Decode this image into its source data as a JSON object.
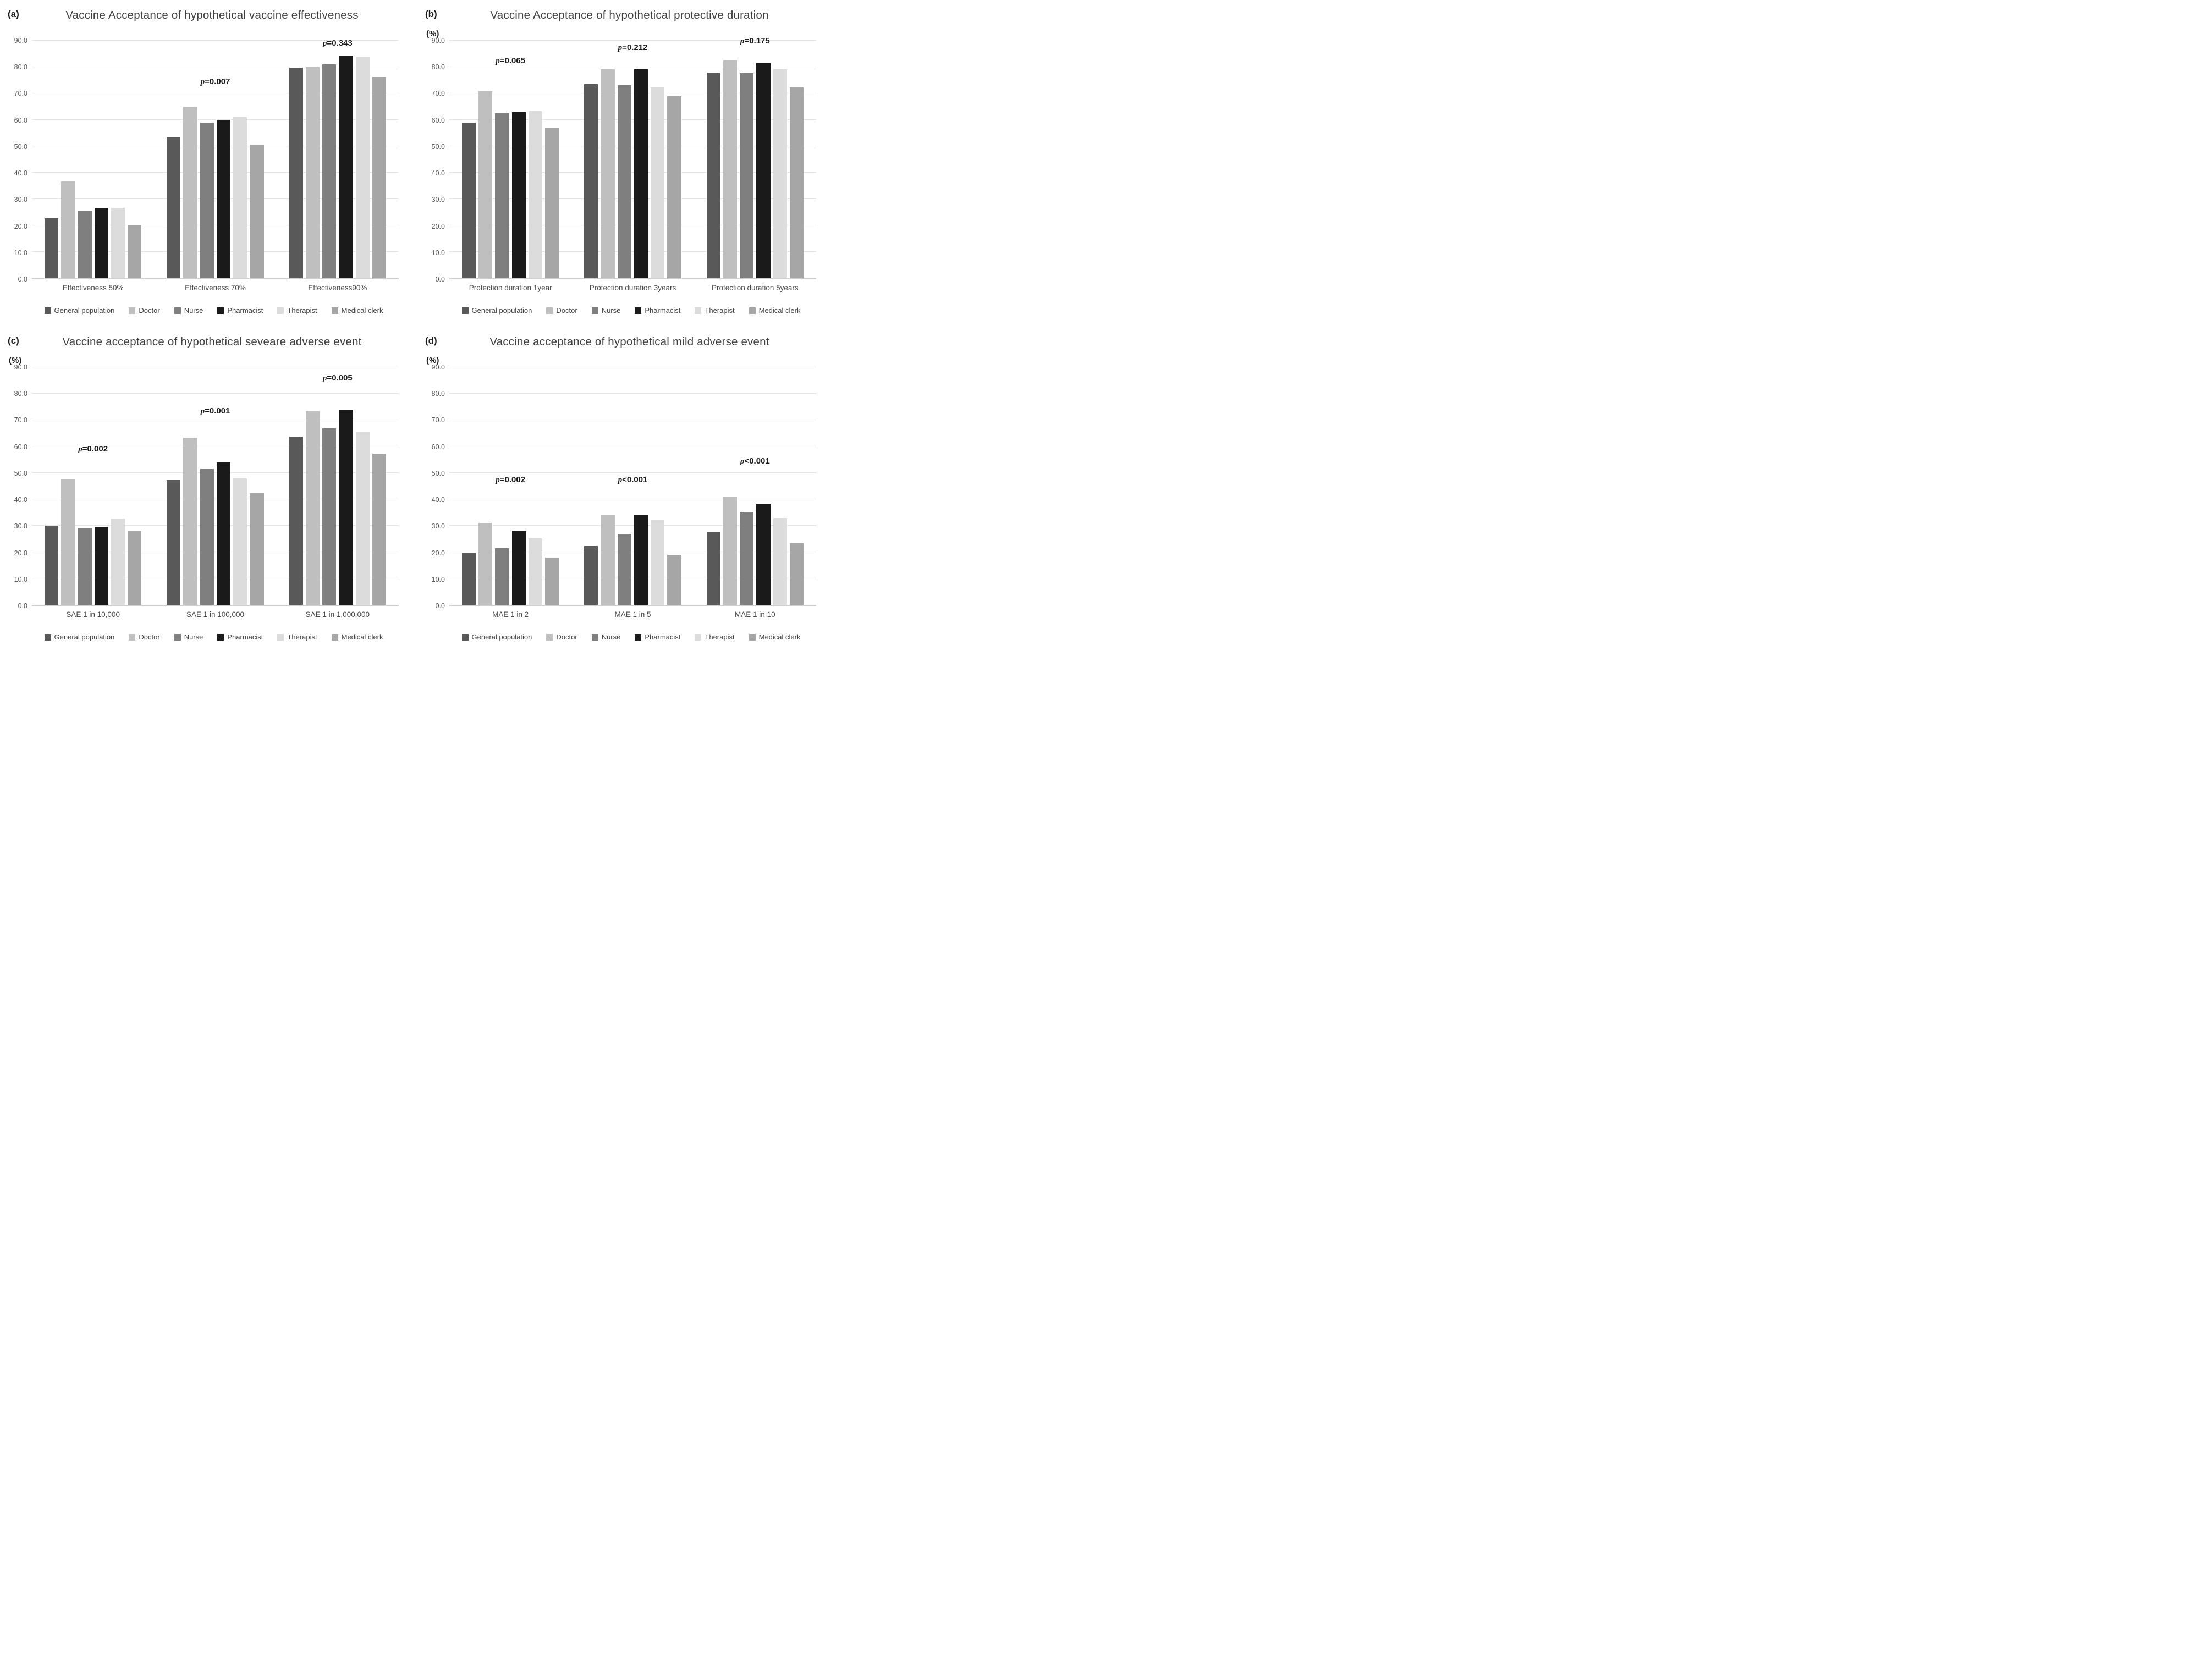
{
  "figure": {
    "description": "Four-panel grayscale grouped bar figure comparing vaccine acceptance (%) across occupational groups",
    "background": "#ffffff",
    "gridline_color": "#e4e4e4",
    "axis_line_color": "#cfcfcf"
  },
  "chart_data": [
    {
      "id": "a",
      "corner_label": "(a)",
      "title": "Vaccine Acceptance of hypothetical vaccine effectiveness",
      "unit_label": "",
      "type": "bar",
      "categories": [
        "Effectiveness 50%",
        "Effectiveness 70%",
        "Effectiveness90%"
      ],
      "series": [
        {
          "name": "General population",
          "color": "#595959",
          "values": [
            22.8,
            53.5,
            79.8
          ]
        },
        {
          "name": "Doctor",
          "color": "#bfbfbf",
          "values": [
            36.6,
            65.0,
            80.0
          ]
        },
        {
          "name": "Nurse",
          "color": "#7f7f7f",
          "values": [
            25.4,
            58.9,
            81.0
          ]
        },
        {
          "name": "Pharmacist",
          "color": "#1a1a1a",
          "values": [
            26.6,
            60.0,
            84.4
          ]
        },
        {
          "name": "Therapist",
          "color": "#dcdcdc",
          "values": [
            26.7,
            61.1,
            84.0
          ]
        },
        {
          "name": "Medical clerk",
          "color": "#a6a6a6",
          "values": [
            20.3,
            50.6,
            76.3
          ]
        }
      ],
      "p_annotations": [
        {
          "text": "p=0.007",
          "group": 1,
          "y": 72.5
        },
        {
          "text": "p=0.343",
          "group": 2,
          "y": 87.0
        }
      ],
      "ylim": [
        0,
        90
      ],
      "ytick_step": 10,
      "ytick_labels": [
        "0.0",
        "10.0",
        "20.0",
        "30.0",
        "40.0",
        "50.0",
        "60.0",
        "70.0",
        "80.0",
        "90.0"
      ],
      "grid": true,
      "legend_position": "bottom",
      "legend_labels": [
        "General population",
        "Doctor",
        "Nurse",
        "Pharmacist",
        "Therapist",
        "Medical clerk"
      ]
    },
    {
      "id": "b",
      "corner_label": "(b)",
      "title": "Vaccine Acceptance of hypothetical protective duration",
      "unit_label": "(%)",
      "type": "bar",
      "categories": [
        "Protection duration 1year",
        "Protection duration 3years",
        "Protection duration 5years"
      ],
      "series": [
        {
          "name": "General population",
          "color": "#595959",
          "values": [
            59.0,
            73.5,
            78.0
          ]
        },
        {
          "name": "Doctor",
          "color": "#bfbfbf",
          "values": [
            70.8,
            79.2,
            82.5
          ]
        },
        {
          "name": "Nurse",
          "color": "#7f7f7f",
          "values": [
            62.4,
            73.2,
            77.8
          ]
        },
        {
          "name": "Pharmacist",
          "color": "#1a1a1a",
          "values": [
            63.0,
            79.2,
            81.4
          ]
        },
        {
          "name": "Therapist",
          "color": "#dcdcdc",
          "values": [
            63.3,
            72.4,
            79.2
          ]
        },
        {
          "name": "Medical clerk",
          "color": "#a6a6a6",
          "values": [
            57.0,
            69.0,
            72.3
          ]
        }
      ],
      "p_annotations": [
        {
          "text": "p=0.065",
          "group": 0,
          "y": 80.5
        },
        {
          "text": "p=0.212",
          "group": 1,
          "y": 85.5
        },
        {
          "text": "p=0.175",
          "group": 2,
          "y": 88.0
        }
      ],
      "ylim": [
        0,
        90
      ],
      "ytick_step": 10,
      "ytick_labels": [
        "0.0",
        "10.0",
        "20.0",
        "30.0",
        "40.0",
        "50.0",
        "60.0",
        "70.0",
        "80.0",
        "90.0"
      ],
      "grid": true,
      "legend_position": "bottom",
      "legend_labels": [
        "General population",
        "Doctor",
        "Nurse",
        "Pharmacist",
        "Therapist",
        "Medical clerk"
      ]
    },
    {
      "id": "c",
      "corner_label": "(c)",
      "title": "Vaccine acceptance of hypothetical seveare adverse event",
      "unit_label": "(%)",
      "type": "bar",
      "categories": [
        "SAE 1 in 10,000",
        "SAE 1 in 100,000",
        "SAE 1 in 1,000,000"
      ],
      "series": [
        {
          "name": "General population",
          "color": "#595959",
          "values": [
            30.0,
            47.3,
            63.8
          ]
        },
        {
          "name": "Doctor",
          "color": "#bfbfbf",
          "values": [
            47.5,
            63.3,
            73.3
          ]
        },
        {
          "name": "Nurse",
          "color": "#7f7f7f",
          "values": [
            29.2,
            51.4,
            66.8
          ]
        },
        {
          "name": "Pharmacist",
          "color": "#1a1a1a",
          "values": [
            29.5,
            54.0,
            74.0
          ]
        },
        {
          "name": "Therapist",
          "color": "#dcdcdc",
          "values": [
            32.8,
            48.0,
            65.5
          ]
        },
        {
          "name": "Medical clerk",
          "color": "#a6a6a6",
          "values": [
            27.9,
            42.2,
            57.3
          ]
        }
      ],
      "p_annotations": [
        {
          "text": "p=0.002",
          "group": 0,
          "y": 57.0
        },
        {
          "text": "p=0.001",
          "group": 1,
          "y": 71.5
        },
        {
          "text": "p=0.005",
          "group": 2,
          "y": 84.0
        }
      ],
      "ylim": [
        0,
        90
      ],
      "ytick_step": 10,
      "ytick_labels": [
        "0.0",
        "10.0",
        "20.0",
        "30.0",
        "40.0",
        "50.0",
        "60.0",
        "70.0",
        "80.0",
        "90.0"
      ],
      "grid": true,
      "legend_position": "bottom",
      "legend_labels": [
        "General population",
        "Doctor",
        "Nurse",
        "Pharmacist",
        "Therapist",
        "Medical clerk"
      ]
    },
    {
      "id": "d",
      "corner_label": "(d)",
      "title": "Vaccine acceptance of hypothetical mild adverse event",
      "unit_label": "(%)",
      "type": "bar",
      "categories": [
        "MAE 1 in 2",
        "MAE 1 in 5",
        "MAE 1 in 10"
      ],
      "series": [
        {
          "name": "General population",
          "color": "#595959",
          "values": [
            19.5,
            22.2,
            27.5
          ]
        },
        {
          "name": "Doctor",
          "color": "#bfbfbf",
          "values": [
            31.0,
            34.2,
            40.8
          ]
        },
        {
          "name": "Nurse",
          "color": "#7f7f7f",
          "values": [
            21.5,
            26.9,
            35.3
          ]
        },
        {
          "name": "Pharmacist",
          "color": "#1a1a1a",
          "values": [
            28.2,
            34.2,
            38.4
          ]
        },
        {
          "name": "Therapist",
          "color": "#dcdcdc",
          "values": [
            25.3,
            32.1,
            32.9
          ]
        },
        {
          "name": "Medical clerk",
          "color": "#a6a6a6",
          "values": [
            17.9,
            19.0,
            23.4
          ]
        }
      ],
      "p_annotations": [
        {
          "text": "p=0.002",
          "group": 0,
          "y": 45.5
        },
        {
          "text": "p<0.001",
          "group": 1,
          "y": 45.5
        },
        {
          "text": "p<0.001",
          "group": 2,
          "y": 52.5
        }
      ],
      "ylim": [
        0,
        90
      ],
      "ytick_step": 10,
      "ytick_labels": [
        "0.0",
        "10.0",
        "20.0",
        "30.0",
        "40.0",
        "50.0",
        "60.0",
        "70.0",
        "80.0",
        "90.0"
      ],
      "grid": true,
      "legend_position": "bottom",
      "legend_labels": [
        "General population",
        "Doctor",
        "Nurse",
        "Pharmacist",
        "Therapist",
        "Medical clerk"
      ]
    }
  ]
}
